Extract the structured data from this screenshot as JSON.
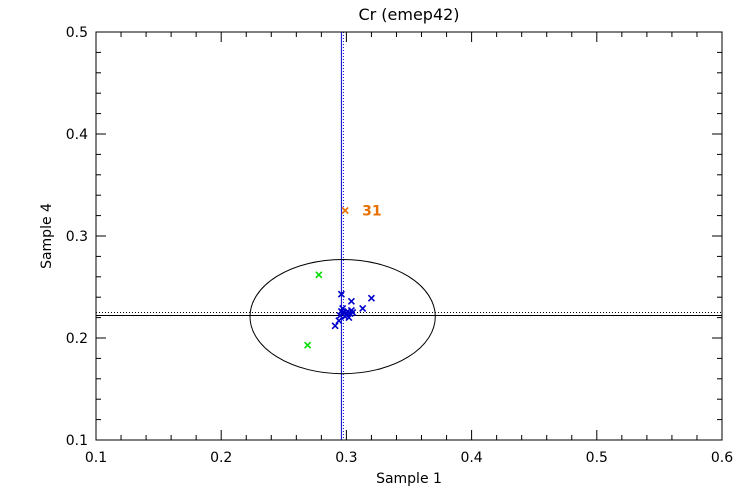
{
  "chart_data": {
    "type": "scatter",
    "title": "Cr (emep42)",
    "xlabel": "Sample 1",
    "ylabel": "Sample 4",
    "xlim": [
      0.1,
      0.6
    ],
    "ylim": [
      0.1,
      0.5
    ],
    "xticks": [
      "0.1",
      "0.2",
      "0.3",
      "0.4",
      "0.5",
      "0.6"
    ],
    "yticks": [
      "0.1",
      "0.2",
      "0.3",
      "0.4",
      "0.5"
    ],
    "grid": false,
    "reference_lines": {
      "vertical_x": 0.296,
      "horizontal_y": 0.222,
      "horizontal_dotted_y": 0.225
    },
    "ellipse": {
      "cx": 0.297,
      "cy": 0.221,
      "rx": 0.074,
      "ry": 0.056
    },
    "colors": {
      "blue": "#0000cc",
      "green": "#00dd00",
      "orange": "#e87000",
      "axis": "#000000"
    },
    "series": [
      {
        "color": "#0000cc",
        "points": [
          [
            0.291,
            0.212
          ],
          [
            0.294,
            0.217
          ],
          [
            0.295,
            0.222
          ],
          [
            0.296,
            0.226
          ],
          [
            0.297,
            0.229
          ],
          [
            0.296,
            0.243
          ],
          [
            0.298,
            0.225
          ],
          [
            0.299,
            0.221
          ],
          [
            0.3,
            0.223
          ],
          [
            0.301,
            0.226
          ],
          [
            0.302,
            0.22
          ],
          [
            0.303,
            0.224
          ],
          [
            0.304,
            0.227
          ],
          [
            0.304,
            0.236
          ],
          [
            0.305,
            0.225
          ],
          [
            0.313,
            0.229
          ],
          [
            0.32,
            0.239
          ]
        ]
      },
      {
        "color": "#00dd00",
        "points": [
          [
            0.278,
            0.262
          ],
          [
            0.269,
            0.193
          ]
        ]
      },
      {
        "color": "#e87000",
        "points": [
          [
            0.299,
            0.325
          ]
        ],
        "labels": [
          "31"
        ]
      }
    ]
  }
}
